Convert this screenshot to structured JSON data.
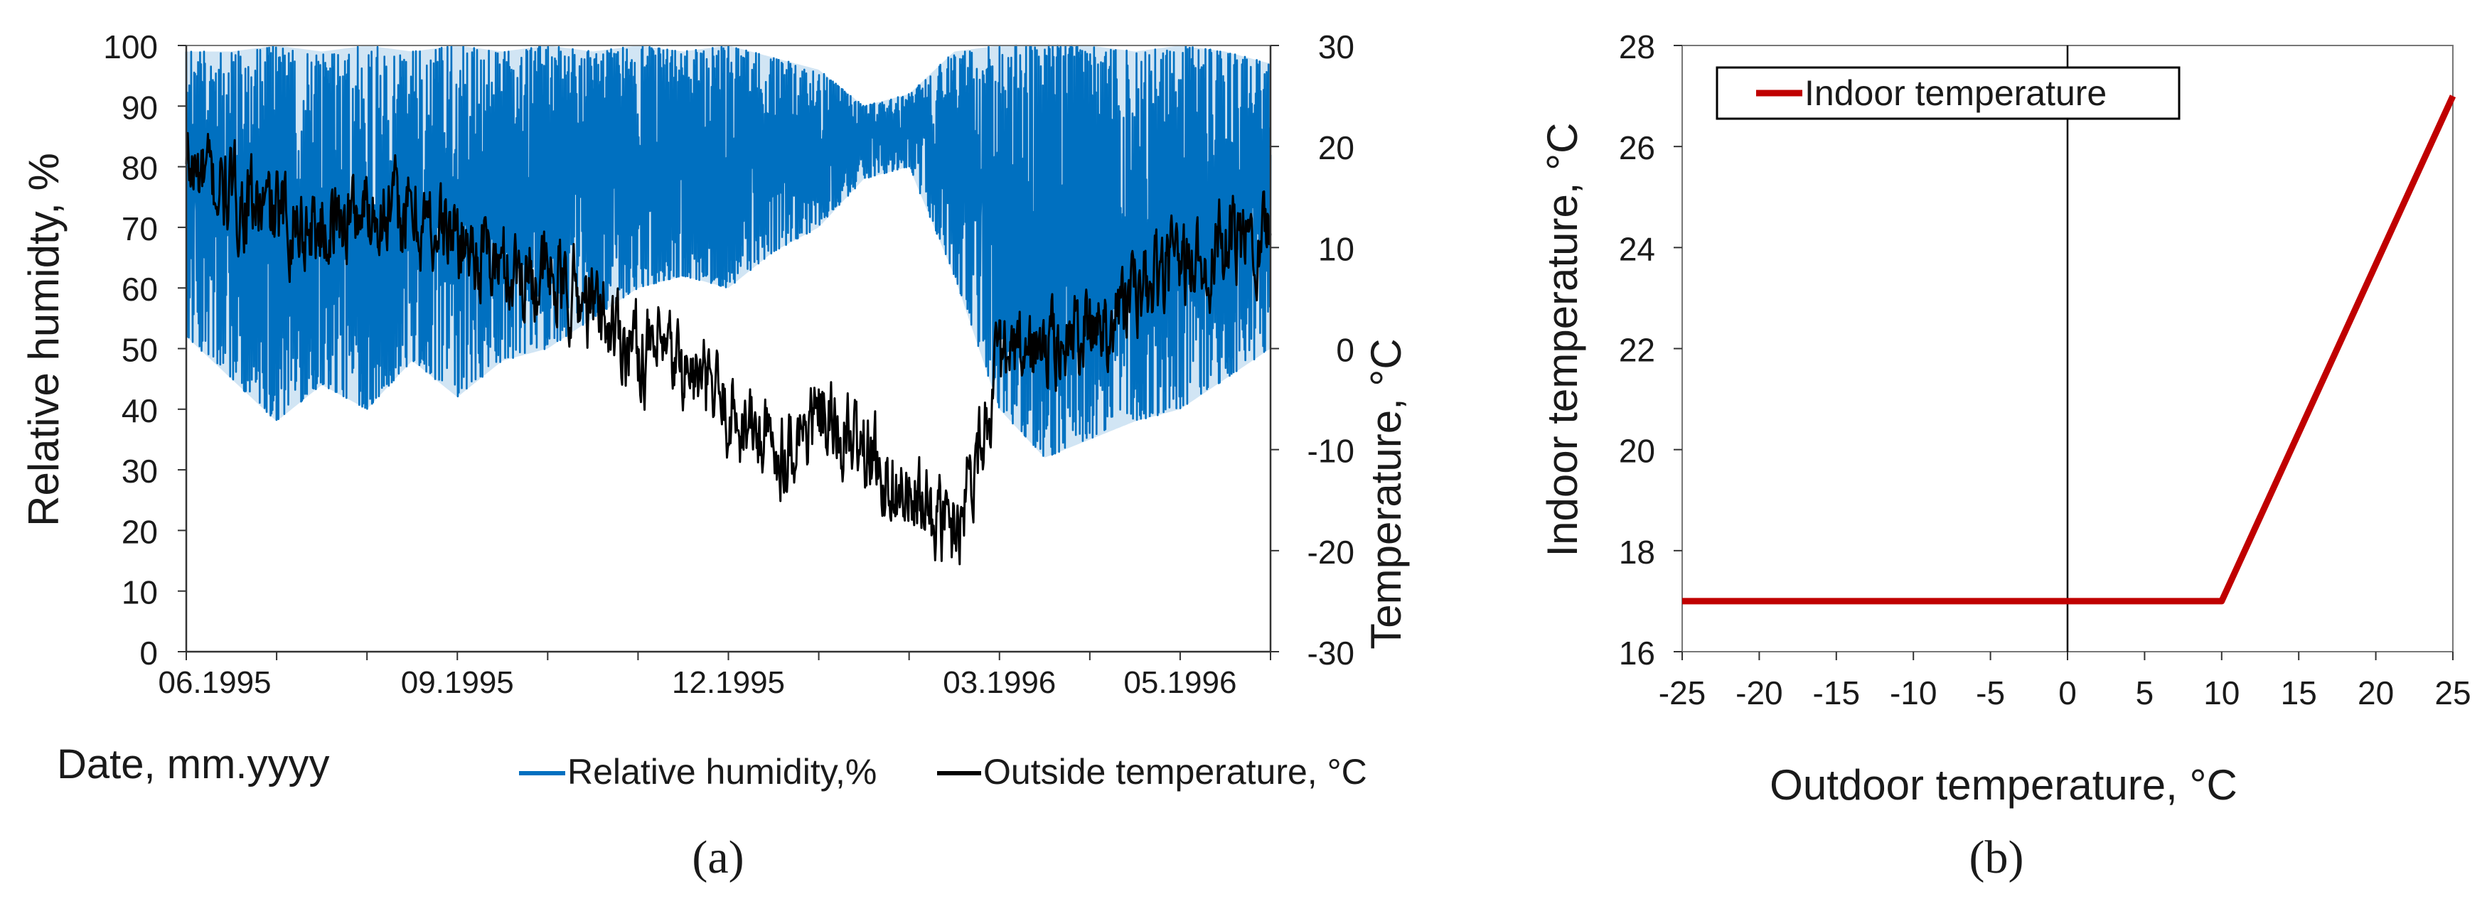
{
  "chart_data": [
    {
      "panel": "a",
      "type": "line",
      "caption": "(a)",
      "ylabel": "Relative humidty, %",
      "y2label": "Temperature,  °C",
      "xlabel": "Date, mm.yyyy",
      "ylim": [
        0,
        100
      ],
      "y2lim": [
        -30,
        30
      ],
      "yticks": [
        0,
        10,
        20,
        30,
        40,
        50,
        60,
        70,
        80,
        90,
        100
      ],
      "y2ticks": [
        -30,
        -20,
        -10,
        0,
        10,
        20,
        30
      ],
      "x_range_months": [
        0,
        12
      ],
      "xticks": [
        {
          "label": "06.1995",
          "month": 0
        },
        {
          "label": "09.1995",
          "month": 3
        },
        {
          "label": "12.1995",
          "month": 6
        },
        {
          "label": "03.1996",
          "month": 9
        },
        {
          "label": "05.1996",
          "month": 11
        }
      ],
      "legend": [
        {
          "label": "Relative humidity,%",
          "color": "#0070C0"
        },
        {
          "label": "Outside temperature,  °C",
          "color": "#000000"
        }
      ],
      "series": [
        {
          "name": "Relative humidity,%",
          "axis": "left",
          "color": "#0070C0",
          "x_months": [
            0,
            0.5,
            1,
            1.5,
            2,
            2.5,
            3,
            3.5,
            4,
            4.5,
            5,
            5.5,
            6,
            6.5,
            7,
            7.5,
            8,
            8.5,
            9,
            9.5,
            10,
            10.5,
            11,
            11.5,
            12
          ],
          "low": [
            52,
            45,
            38,
            44,
            40,
            48,
            42,
            48,
            50,
            55,
            60,
            62,
            60,
            66,
            70,
            78,
            80,
            62,
            40,
            32,
            35,
            38,
            40,
            45,
            50
          ],
          "high": [
            99,
            99,
            100,
            99,
            100,
            99,
            100,
            99,
            100,
            99,
            100,
            99,
            100,
            98,
            96,
            90,
            92,
            99,
            100,
            100,
            100,
            99,
            100,
            99,
            97
          ]
        },
        {
          "name": "Outside temperature,  °C",
          "axis": "right",
          "color": "#000000",
          "x_months": [
            0,
            0.5,
            1,
            1.5,
            2,
            2.5,
            3,
            3.5,
            4,
            4.5,
            5,
            5.5,
            6,
            6.5,
            7,
            7.5,
            8,
            8.5,
            9,
            9.5,
            10,
            10.5,
            11,
            11.5,
            12
          ],
          "values": [
            18,
            15,
            13,
            12,
            14,
            13,
            11,
            8,
            7,
            4,
            0,
            -2,
            -6,
            -10,
            -7,
            -10,
            -15,
            -18,
            -2,
            0,
            2,
            5,
            8,
            10,
            12
          ]
        }
      ]
    },
    {
      "panel": "b",
      "type": "line",
      "caption": "(b)",
      "xlabel": "Outdoor temperature, °C",
      "ylabel": "Indoor temperature, °C",
      "xlim": [
        -25,
        25
      ],
      "ylim": [
        16,
        28
      ],
      "xticks": [
        -25,
        -20,
        -15,
        -10,
        -5,
        0,
        5,
        10,
        15,
        20,
        25
      ],
      "yticks": [
        16,
        18,
        20,
        22,
        24,
        26,
        28
      ],
      "legend": [
        {
          "label": "Indoor temperature",
          "color": "#C00000"
        }
      ],
      "series": [
        {
          "name": "Indoor temperature",
          "color": "#C00000",
          "x": [
            -25,
            10,
            25
          ],
          "y": [
            17,
            17,
            27
          ]
        }
      ]
    }
  ]
}
